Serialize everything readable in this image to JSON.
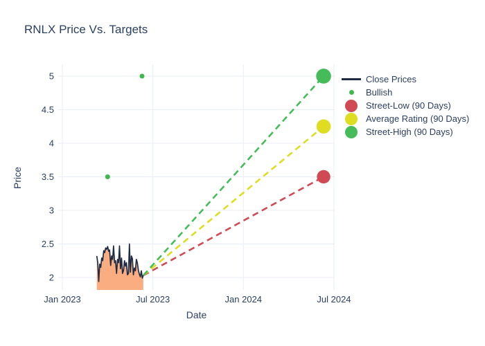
{
  "chart_data": {
    "type": "line",
    "title": "RNLX Price Vs. Targets",
    "xlabel": "Date",
    "ylabel": "Price",
    "grid": true,
    "grid_color": "#e9eef6",
    "text_color": "#2a3f5f",
    "background": "#ffffff",
    "x_axis": {
      "unit": "decimal_year",
      "range": [
        2022.977,
        2024.504
      ],
      "ticks": [
        2023.0,
        2023.5,
        2024.0,
        2024.5
      ],
      "tick_labels": [
        "Jan 2023",
        "Jul 2023",
        "Jan 2024",
        "Jul 2024"
      ]
    },
    "y_axis": {
      "range": [
        1.814,
        5.175
      ],
      "ticks": [
        2,
        2.5,
        3,
        3.5,
        4,
        4.5,
        5
      ],
      "tick_labels": [
        "2",
        "2.5",
        "3",
        "3.5",
        "4",
        "4.5",
        "5"
      ]
    },
    "series": {
      "close_prices": {
        "name": "Close Prices",
        "line_color": "#1f2c44",
        "fill_color": "#fbad82",
        "fill": "tozeroy",
        "x_start": 2023.19,
        "x_end": 2023.447,
        "values": [
          2.32,
          2.22,
          1.94,
          2.2,
          2.15,
          2.29,
          2.25,
          2.4,
          2.37,
          2.44,
          2.42,
          2.46,
          2.39,
          2.41,
          2.18,
          2.32,
          2.27,
          2.47,
          2.22,
          2.25,
          2.06,
          2.27,
          2.22,
          2.47,
          2.13,
          2.29,
          2.06,
          2.1,
          2.25,
          2.17,
          2.22,
          2.04,
          2.06,
          2.5,
          2.08,
          2.32,
          2.28,
          2.04,
          2.14,
          2.1,
          2.27,
          2.22,
          2.11,
          2.05,
          2.01,
          2.1,
          1.99,
          2.03
        ]
      },
      "bullish": {
        "name": "Bullish",
        "color": "#3fb94e",
        "marker_radius": 3.5,
        "points": [
          {
            "x": 2023.25,
            "y": 3.5
          },
          {
            "x": 2023.44,
            "y": 5.0
          }
        ]
      },
      "targets": [
        {
          "name": "Street-Low (90 Days)",
          "color": "#d04a54",
          "x": 2024.443,
          "value": 3.5,
          "marker_radius": 9.7,
          "dash": "9 6"
        },
        {
          "name": "Average Rating (90 Days)",
          "color": "#dedd21",
          "x": 2024.443,
          "value": 4.25,
          "marker_radius": 10.3,
          "dash": "9 6"
        },
        {
          "name": "Street-High (90 Days)",
          "color": "#45bc59",
          "x": 2024.443,
          "value": 5.0,
          "marker_radius": 10.8,
          "dash": "9 6"
        }
      ]
    },
    "legend": {
      "position": "right-top",
      "items": [
        {
          "label": "Close Prices",
          "symbol": "line",
          "color": "#1f2c44"
        },
        {
          "label": "Bullish",
          "symbol": "dot",
          "color": "#3fb94e"
        },
        {
          "label": "Street-Low (90 Days)",
          "symbol": "circle",
          "color": "#d04a54"
        },
        {
          "label": "Average Rating (90 Days)",
          "symbol": "circle",
          "color": "#dedd21"
        },
        {
          "label": "Street-High (90 Days)",
          "symbol": "circle",
          "color": "#45bc59"
        }
      ]
    }
  }
}
